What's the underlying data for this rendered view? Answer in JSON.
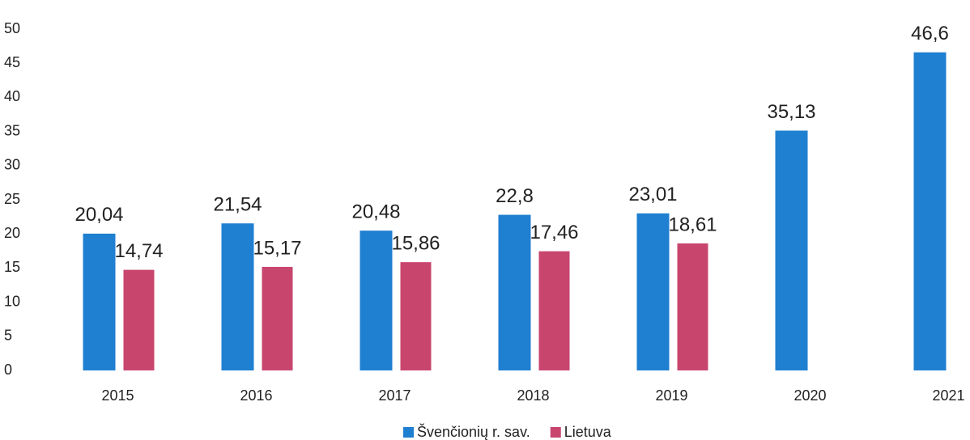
{
  "chart_data": {
    "type": "bar",
    "categories": [
      "2015",
      "2016",
      "2017",
      "2018",
      "2019",
      "2020",
      "2021"
    ],
    "series": [
      {
        "name": "Švenčionių r. sav.",
        "color": "#1f7fd0",
        "values": [
          20.04,
          21.54,
          20.48,
          22.8,
          23.01,
          35.13,
          46.6
        ],
        "value_labels": [
          "20,04",
          "21,54",
          "20,48",
          "22,8",
          "23,01",
          "35,13",
          "46,6"
        ]
      },
      {
        "name": "Lietuva",
        "color": "#c8456e",
        "values": [
          14.74,
          15.17,
          15.86,
          17.46,
          18.61,
          null,
          null
        ],
        "value_labels": [
          "14,74",
          "15,17",
          "15,86",
          "17,46",
          "18,61",
          null,
          null
        ]
      }
    ],
    "ylim": [
      0,
      50
    ],
    "yticks": [
      0,
      5,
      10,
      15,
      20,
      25,
      30,
      35,
      40,
      45,
      50
    ],
    "grid": false,
    "legend": "bottom"
  }
}
